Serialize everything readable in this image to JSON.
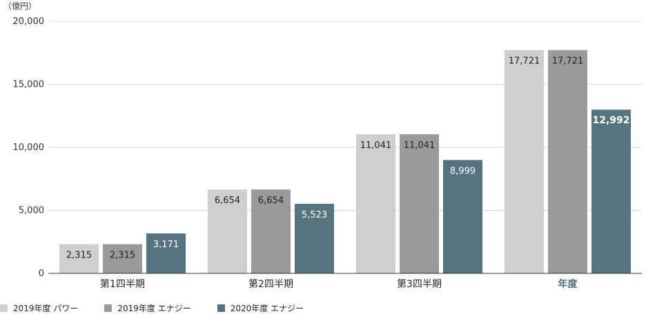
{
  "chart_data": {
    "type": "bar",
    "unit_label": "（億円）",
    "categories": [
      "第1四半期",
      "第2四半期",
      "第3四半期",
      "年度"
    ],
    "highlight_category": "年度",
    "series": [
      {
        "name": "2019年度 パワー",
        "color": "#cfcfcf",
        "label_color": "#222222",
        "values": [
          2315,
          6654,
          11041,
          17721
        ]
      },
      {
        "name": "2019年度 エナジー",
        "color": "#9a9a9a",
        "label_color": "#222222",
        "values": [
          2315,
          6654,
          11041,
          17721
        ]
      },
      {
        "name": "2020年度 エナジー",
        "color": "#55747f",
        "label_color": "#ffffff",
        "values": [
          3171,
          5523,
          8999,
          12992
        ]
      }
    ],
    "value_labels": [
      [
        "2,315",
        "6,654",
        "11,041",
        "17,721"
      ],
      [
        "2,315",
        "6,654",
        "11,041",
        "17,721"
      ],
      [
        "3,171",
        "5,523",
        "8,999",
        "12,992"
      ]
    ],
    "y_ticks": [
      0,
      5000,
      10000,
      15000,
      20000
    ],
    "y_tick_labels": [
      "0",
      "5,000",
      "10,000",
      "15,000",
      "20,000"
    ],
    "ylim": [
      0,
      20000
    ],
    "grid": true,
    "legend_position": "bottom-left",
    "highlight_color": "#4f6e7c"
  }
}
